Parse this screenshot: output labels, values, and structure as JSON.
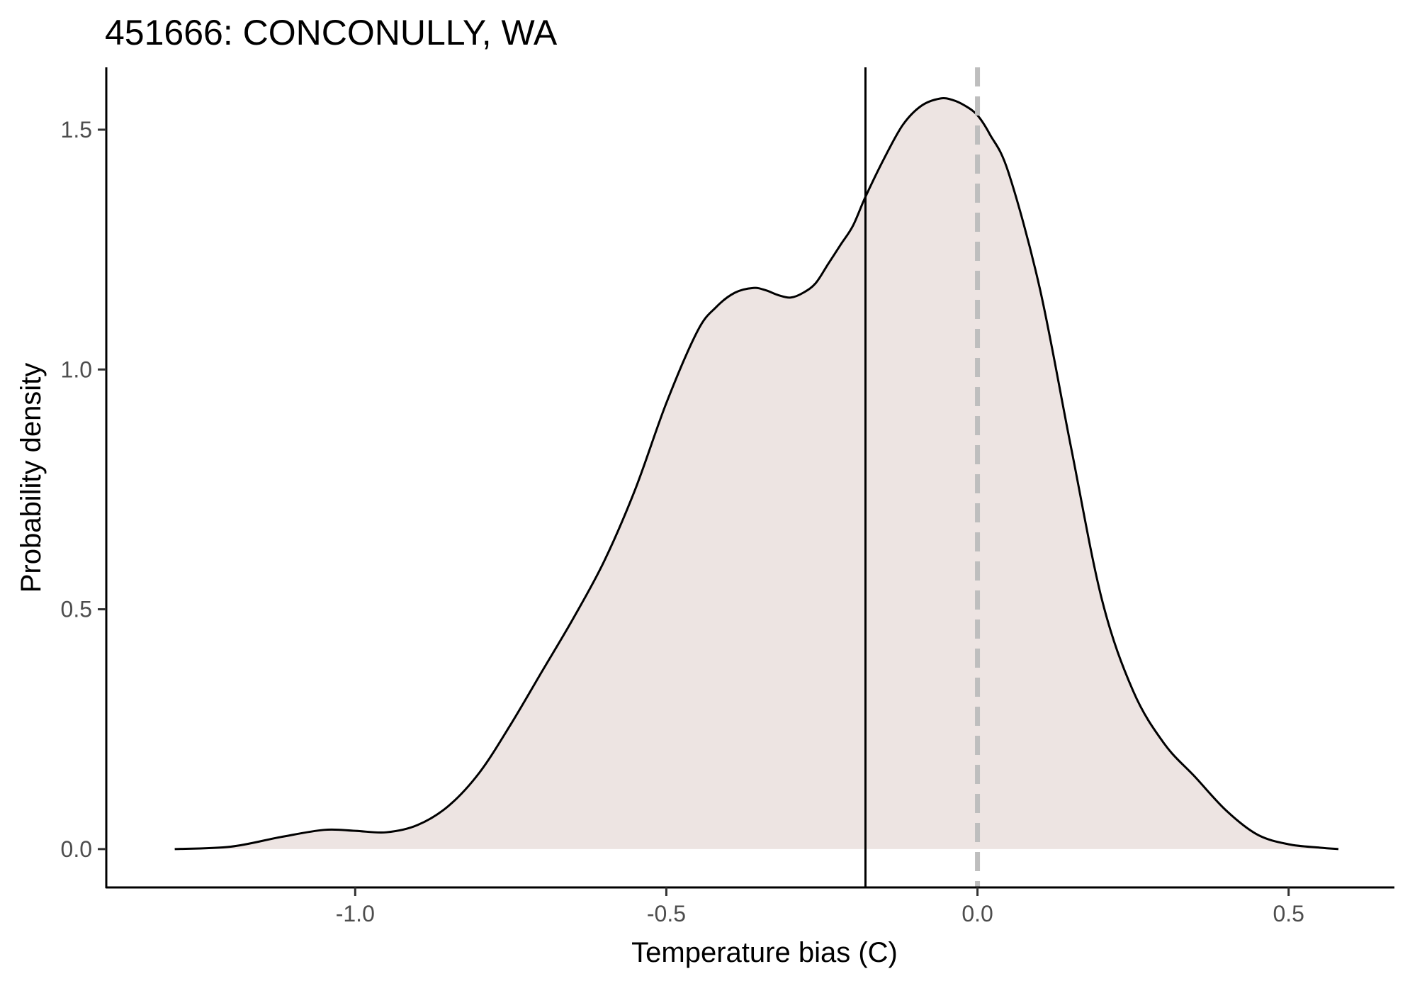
{
  "chart_data": {
    "type": "area",
    "title": "451666: CONCONULLY, WA",
    "xlabel": "Temperature bias (C)",
    "ylabel": "Probability density",
    "xlim": [
      -1.4,
      0.67
    ],
    "ylim": [
      -0.08,
      1.63
    ],
    "x_ticks": [
      {
        "value": -1.0,
        "label": "-1.0"
      },
      {
        "value": -0.5,
        "label": "-0.5"
      },
      {
        "value": 0.0,
        "label": "0.0"
      },
      {
        "value": 0.5,
        "label": "0.5"
      }
    ],
    "y_ticks": [
      {
        "value": 0.0,
        "label": "0.0"
      },
      {
        "value": 0.5,
        "label": "0.5"
      },
      {
        "value": 1.0,
        "label": "1.0"
      },
      {
        "value": 1.5,
        "label": "1.5"
      }
    ],
    "grid": false,
    "legend": "none",
    "series": [
      {
        "x": [
          -1.29,
          -1.2,
          -1.12,
          -1.05,
          -1.0,
          -0.95,
          -0.9,
          -0.85,
          -0.8,
          -0.75,
          -0.7,
          -0.65,
          -0.6,
          -0.55,
          -0.5,
          -0.45,
          -0.42,
          -0.39,
          -0.36,
          -0.34,
          -0.32,
          -0.3,
          -0.28,
          -0.26,
          -0.24,
          -0.22,
          -0.2,
          -0.18,
          -0.15,
          -0.12,
          -0.09,
          -0.06,
          -0.04,
          -0.02,
          0.0,
          0.02,
          0.05,
          0.1,
          0.15,
          0.2,
          0.25,
          0.3,
          0.35,
          0.4,
          0.45,
          0.5,
          0.55,
          0.58
        ],
        "y": [
          0.0,
          0.005,
          0.025,
          0.04,
          0.038,
          0.035,
          0.05,
          0.09,
          0.16,
          0.26,
          0.37,
          0.48,
          0.6,
          0.75,
          0.93,
          1.08,
          1.13,
          1.16,
          1.17,
          1.165,
          1.155,
          1.15,
          1.16,
          1.18,
          1.22,
          1.26,
          1.3,
          1.36,
          1.44,
          1.51,
          1.55,
          1.565,
          1.562,
          1.55,
          1.53,
          1.49,
          1.41,
          1.17,
          0.84,
          0.52,
          0.33,
          0.22,
          0.15,
          0.08,
          0.03,
          0.01,
          0.003,
          0.0
        ],
        "fill": "#ede4e2",
        "line": "#000000"
      }
    ],
    "reference_lines": [
      {
        "x": -0.18,
        "style": "solid",
        "color": "#000000"
      },
      {
        "x": 0.0,
        "style": "dashed",
        "color": "#bebebe"
      }
    ]
  }
}
